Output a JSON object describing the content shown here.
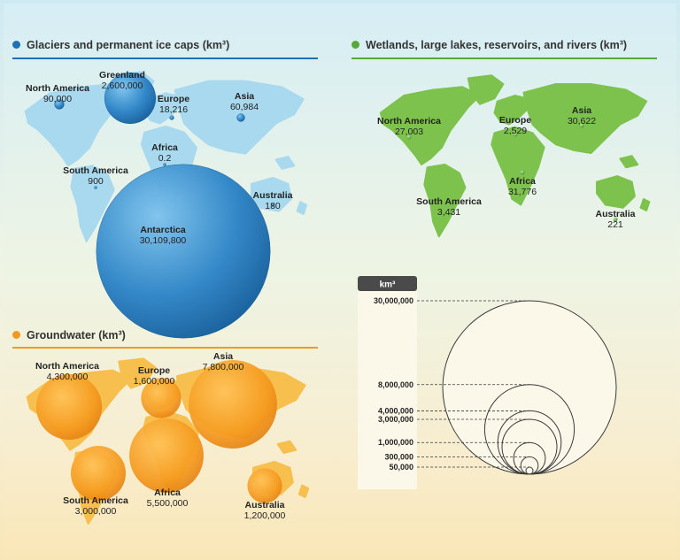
{
  "sections": {
    "glaciers": {
      "title": "Glaciers and permanent ice caps (km³)",
      "color": "#1c72b3"
    },
    "wetlands": {
      "title": "Wetlands, large lakes, reservoirs, and rivers (km³)",
      "color": "#56a938"
    },
    "groundwater": {
      "title": "Groundwater (km³)",
      "color": "#f29a1f"
    }
  },
  "scale": {
    "header": "km³",
    "values": [
      "30,000,000",
      "8,000,000",
      "4,000,000",
      "3,000,000",
      "1,000,000",
      "300,000",
      "50,000"
    ]
  },
  "chart_data": [
    {
      "type": "bubble-map",
      "title": "Glaciers and permanent ice caps (km³)",
      "categories": [
        "Greenland",
        "North America",
        "Europe",
        "Asia",
        "Africa",
        "South America",
        "Australia",
        "Antarctica"
      ],
      "values": [
        2600000,
        90000,
        18216,
        60984,
        0.2,
        900,
        180,
        30109800
      ],
      "labels": [
        "2,600,000",
        "90,000",
        "18,216",
        "60,984",
        "0.2",
        "900",
        "180",
        "30,109,800"
      ]
    },
    {
      "type": "bubble-map",
      "title": "Wetlands, large lakes, reservoirs, and rivers (km³)",
      "categories": [
        "North America",
        "Europe",
        "Asia",
        "Africa",
        "South America",
        "Australia"
      ],
      "values": [
        27003,
        2529,
        30622,
        31776,
        3431,
        221
      ],
      "labels": [
        "27,003",
        "2,529",
        "30,622",
        "31,776",
        "3,431",
        "221"
      ]
    },
    {
      "type": "bubble-map",
      "title": "Groundwater (km³)",
      "categories": [
        "North America",
        "Europe",
        "Asia",
        "Africa",
        "South America",
        "Australia"
      ],
      "values": [
        4300000,
        1600000,
        7800000,
        5500000,
        3000000,
        1200000
      ],
      "labels": [
        "4,300,000",
        "1,600,000",
        "7,800,000",
        "5,500,000",
        "3,000,000",
        "1,200,000"
      ]
    }
  ]
}
